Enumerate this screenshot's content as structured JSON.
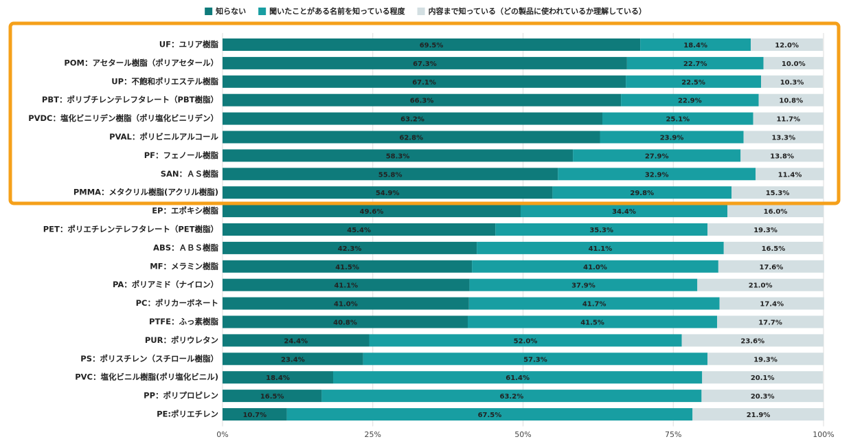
{
  "chart_data": {
    "type": "stacked-bar",
    "orientation": "horizontal",
    "categories": [
      "UF：ユリア樹脂",
      "POM：アセタール樹脂（ポリアセタール）",
      "UP：不飽和ポリエステル樹脂",
      "PBT：ポリブチレンテレフタレート（PBT樹脂）",
      "PVDC：塩化ビニリデン樹脂（ポリ塩化ビニリデン）",
      "PVAL：ポリビニルアルコール",
      "PF：フェノール樹脂",
      "SAN：ＡＳ樹脂",
      "PMMA：メタクリル樹脂(アクリル樹脂)",
      "EP：エポキシ樹脂",
      "PET：ポリエチレンテレフタレート（PET樹脂）",
      "ABS：ＡＢＳ樹脂",
      "MF：メラミン樹脂",
      "PA：ポリアミド（ナイロン）",
      "PC：ポリカーボネート",
      "PTFE：ふっ素樹脂",
      "PUR：ポリウレタン",
      "PS：ポリスチレン（スチロール樹脂）",
      "PVC：塩化ビニル樹脂(ポリ塩化ビニル)",
      "PP：ポリプロピレン",
      "PE:ポリエチレン"
    ],
    "series": [
      {
        "name": "知らない",
        "color": "#0f7b7b",
        "values": [
          69.5,
          67.3,
          67.1,
          66.3,
          63.2,
          62.8,
          58.3,
          55.8,
          54.9,
          49.6,
          45.4,
          42.3,
          41.5,
          41.1,
          41.0,
          40.8,
          24.4,
          23.4,
          18.4,
          16.5,
          10.7
        ],
        "value_labels": [
          "69.5%",
          "67.3%",
          "67.1%",
          "66.3%",
          "63.2%",
          "62.8%",
          "58.3%",
          "55.8%",
          "54.9%",
          "49.6%",
          "45.4%",
          "42.3%",
          "41.5%",
          "41.1%",
          "41.0%",
          "40.8%",
          "24.4%",
          "23.4%",
          "18.4%",
          "16.5%",
          "10.7%"
        ]
      },
      {
        "name": "聞いたことがある名前を知っている程度",
        "color": "#189ea2",
        "values": [
          18.4,
          22.7,
          22.5,
          22.9,
          25.1,
          23.9,
          27.9,
          32.9,
          29.8,
          34.4,
          35.3,
          41.1,
          41.0,
          37.9,
          41.7,
          41.5,
          52.0,
          57.3,
          61.4,
          63.2,
          67.5
        ],
        "value_labels": [
          "18.4%",
          "22.7%",
          "22.5%",
          "22.9%",
          "25.1%",
          "23.9%",
          "27.9%",
          "32.9%",
          "29.8%",
          "34.4%",
          "35.3%",
          "41.1%",
          "41.0%",
          "37.9%",
          "41.7%",
          "41.5%",
          "52.0%",
          "57.3%",
          "61.4%",
          "63.2%",
          "67.5%"
        ]
      },
      {
        "name": "内容まで知っている（どの製品に使われているか理解している）",
        "color": "#d3dfe2",
        "values": [
          12.0,
          10.0,
          10.3,
          10.8,
          11.7,
          13.3,
          13.8,
          11.4,
          15.3,
          16.0,
          19.3,
          16.5,
          17.6,
          21.0,
          17.4,
          17.7,
          23.6,
          19.3,
          20.1,
          20.3,
          21.9
        ],
        "value_labels": [
          "12.0%",
          "10.0%",
          "10.3%",
          "10.8%",
          "11.7%",
          "13.3%",
          "13.8%",
          "11.4%",
          "15.3%",
          "16.0%",
          "19.3%",
          "16.5%",
          "17.6%",
          "21.0%",
          "17.4%",
          "17.7%",
          "23.6%",
          "19.3%",
          "20.1%",
          "20.3%",
          "21.9%"
        ]
      }
    ],
    "xlim": [
      0,
      100
    ],
    "xticks": [
      {
        "value": 0,
        "label": "0%"
      },
      {
        "value": 25,
        "label": "25%"
      },
      {
        "value": 50,
        "label": "50%"
      },
      {
        "value": 75,
        "label": "75%"
      },
      {
        "value": 100,
        "label": "100%"
      }
    ],
    "grid": true,
    "legend": "top"
  }
}
